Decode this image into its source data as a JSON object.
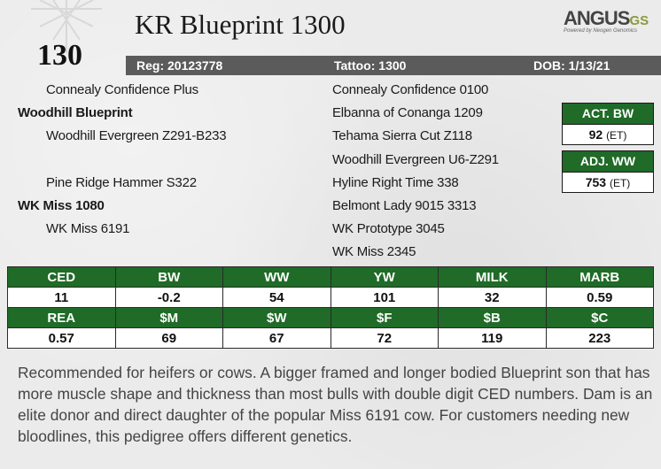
{
  "header": {
    "lot_number": "130",
    "bull_name": "KR Blueprint 1300",
    "logo_text": "ANGUS",
    "logo_suffix": "GS",
    "logo_tagline": "Powered by Neogen Genomics"
  },
  "reg_bar": {
    "reg": "Reg: 20123778",
    "tattoo": "Tattoo: 1300",
    "dob": "DOB: 1/13/21"
  },
  "pedigree": {
    "sire_sire_sire": "Connealy Confidence Plus",
    "sire": "Woodhill Blueprint",
    "sire_dam": "Woodhill Evergreen Z291-B233",
    "dam_sire": "Pine Ridge Hammer S322",
    "dam": "WK Miss 1080",
    "dam_dam": "WK Miss 6191",
    "right_col": [
      "Connealy Confidence 0100",
      "Elbanna of Conanga 1209",
      "Tehama Sierra Cut Z118",
      "Woodhill Evergreen U6-Z291",
      "Hyline Right Time 338",
      "Belmont Lady 9015 3313",
      "WK Prototype 3045",
      "WK Miss 2345"
    ]
  },
  "weights": {
    "act_bw_label": "ACT. BW",
    "act_bw_value": "92",
    "act_bw_note": "(ET)",
    "adj_ww_label": "ADJ. WW",
    "adj_ww_value": "753",
    "adj_ww_note": "(ET)"
  },
  "epds": {
    "row1_headers": [
      "CED",
      "BW",
      "WW",
      "YW",
      "MILK",
      "MARB"
    ],
    "row1_values": [
      "11",
      "-0.2",
      "54",
      "101",
      "32",
      "0.59"
    ],
    "row2_headers": [
      "REA",
      "$M",
      "$W",
      "$F",
      "$B",
      "$C"
    ],
    "row2_values": [
      "0.57",
      "69",
      "67",
      "72",
      "119",
      "223"
    ]
  },
  "description": "Recommended for heifers or cows. A bigger framed and longer bodied Blueprint son that has more muscle shape and thickness than most bulls with double digit CED numbers. Dam is an elite donor and direct daughter of the popular Miss 6191 cow. For customers needing new bloodlines, this pedigree offers different genetics.",
  "colors": {
    "green": "#1f6b27",
    "gray_bar": "#5b5b5b"
  }
}
